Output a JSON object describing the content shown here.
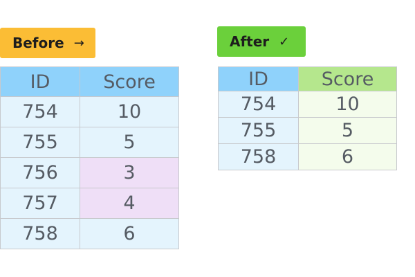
{
  "before": {
    "label": "Before",
    "icon": "arrow-right-icon",
    "icon_glyph": "→",
    "color": "#fbbd35",
    "table": {
      "columns": [
        "ID",
        "Score"
      ],
      "rows": [
        {
          "id": "754",
          "score": "10",
          "removed": false
        },
        {
          "id": "755",
          "score": "5",
          "removed": false
        },
        {
          "id": "756",
          "score": "3",
          "removed": true
        },
        {
          "id": "757",
          "score": "4",
          "removed": true
        },
        {
          "id": "758",
          "score": "6",
          "removed": false
        }
      ],
      "header_color": "#8fd2fb",
      "cell_color": "#e4f4fd",
      "removed_color": "#efdff7"
    }
  },
  "after": {
    "label": "After",
    "icon": "checkmark-icon",
    "icon_glyph": "✓",
    "color": "#6bd03b",
    "table": {
      "columns": [
        "ID",
        "Score"
      ],
      "rows": [
        {
          "id": "754",
          "score": "10"
        },
        {
          "id": "755",
          "score": "5"
        },
        {
          "id": "758",
          "score": "6"
        }
      ],
      "header_color": "#8fd2fb",
      "score_header_color": "#b5e78d",
      "score_cell_color": "#f4fcec"
    }
  }
}
